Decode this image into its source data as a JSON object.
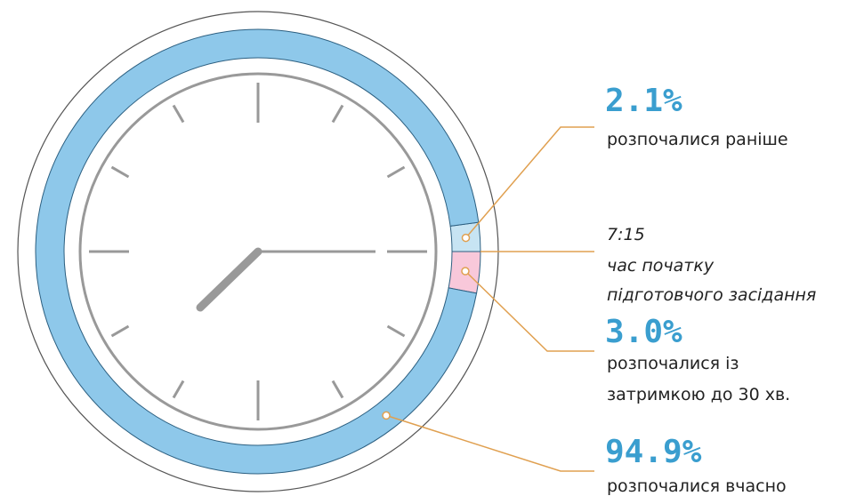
{
  "chart_data": {
    "type": "donut",
    "categories": [
      [
        "розпочалися раніше"
      ],
      [
        "розпочалися із",
        "затримкою до 30 хв."
      ],
      [
        "розпочалися вчасно"
      ]
    ],
    "values": [
      2.1,
      3.0,
      94.9
    ],
    "value_labels": [
      "2.1%",
      "3.0%",
      "94.9%"
    ],
    "colors": [
      "#c7e4f3",
      "#f8c8da",
      "#8ec8ea"
    ],
    "annotation": [
      "7:15",
      "час початку",
      "підготовчого засідання"
    ]
  }
}
